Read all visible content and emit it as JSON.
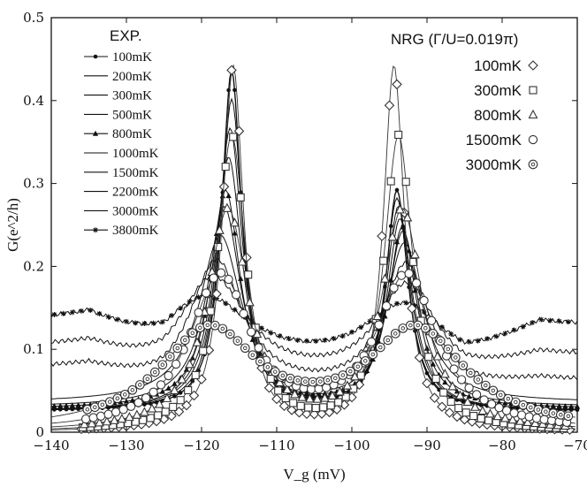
{
  "chart_data": {
    "type": "line",
    "title": "",
    "xlabel": "V_g (mV)",
    "ylabel": "G(e^2/h)",
    "xlim": [
      -140,
      -70
    ],
    "ylim": [
      0,
      0.5
    ],
    "xticks": [
      -140,
      -130,
      -120,
      -110,
      -100,
      -90,
      -80,
      -70
    ],
    "yticks": [
      0,
      0.1,
      0.2,
      0.3,
      0.4,
      0.5
    ],
    "xtick_labels": [
      "−140",
      "−130",
      "−120",
      "−110",
      "−100",
      "−90",
      "−80",
      "−70"
    ],
    "ytick_labels": [
      "0",
      "0.1",
      "0.2",
      "0.3",
      "0.4",
      "0.5"
    ],
    "legend_exp_title": "EXP.",
    "legend_nrg_title": "NRG (Γ/U=0.019π)",
    "exp_series": [
      {
        "name": "100mK",
        "marker": "dot",
        "base": 0.025,
        "p1": [
          -116.0,
          0.435,
          1.6
        ],
        "p2": [
          -94.0,
          0.29,
          1.8
        ],
        "bg": [
          0.0,
          0.0
        ]
      },
      {
        "name": "200mK",
        "marker": "none",
        "base": 0.025,
        "p1": [
          -116.0,
          0.4,
          1.8
        ],
        "p2": [
          -94.0,
          0.28,
          1.9
        ],
        "bg": [
          0.0,
          0.0
        ]
      },
      {
        "name": "300mK",
        "marker": "none",
        "base": 0.025,
        "p1": [
          -116.2,
          0.365,
          2.0
        ],
        "p2": [
          -93.8,
          0.27,
          2.0
        ],
        "bg": [
          0.0,
          0.0
        ]
      },
      {
        "name": "500mK",
        "marker": "none",
        "base": 0.025,
        "p1": [
          -116.4,
          0.33,
          2.2
        ],
        "p2": [
          -93.6,
          0.255,
          2.1
        ],
        "bg": [
          0.0,
          0.0
        ]
      },
      {
        "name": "800mK",
        "marker": "triangle",
        "base": 0.028,
        "p1": [
          -116.8,
          0.29,
          2.4
        ],
        "p2": [
          -93.3,
          0.245,
          2.3
        ],
        "bg": [
          0.0,
          0.0
        ]
      },
      {
        "name": "1000mK",
        "marker": "none",
        "base": 0.03,
        "p1": [
          -117.0,
          0.27,
          2.7
        ],
        "p2": [
          -93.2,
          0.24,
          2.5
        ],
        "bg": [
          0.0,
          0.0
        ]
      },
      {
        "name": "1500mK",
        "marker": "none",
        "base": 0.035,
        "p1": [
          -117.5,
          0.235,
          3.4
        ],
        "p2": [
          -93.0,
          0.225,
          3.0
        ],
        "bg": [
          0.0,
          0.0
        ]
      },
      {
        "name": "2200mK",
        "marker": "none",
        "base": 0.045,
        "p1": [
          -118.0,
          0.205,
          4.4
        ],
        "p2": [
          -92.8,
          0.2,
          3.8
        ],
        "bg": [
          0.03,
          0.015
        ]
      },
      {
        "name": "3000mK",
        "marker": "none",
        "base": 0.06,
        "p1": [
          -118.5,
          0.185,
          5.5
        ],
        "p2": [
          -92.7,
          0.175,
          4.8
        ],
        "bg": [
          0.04,
          0.03
        ]
      },
      {
        "name": "3800mK",
        "marker": "star",
        "base": 0.075,
        "p1": [
          -119.5,
          0.16,
          7.5
        ],
        "p2": [
          -93.0,
          0.15,
          6.5
        ],
        "bg": [
          0.055,
          0.05
        ]
      }
    ],
    "nrg_series": [
      {
        "name": "100mK",
        "marker": "diamond",
        "base": 0.0,
        "p1": [
          -115.8,
          0.44,
          1.7
        ],
        "p2": [
          -94.4,
          0.44,
          1.7
        ],
        "valley": 0.085
      },
      {
        "name": "300mK",
        "marker": "square",
        "base": 0.0,
        "p1": [
          -116.0,
          0.355,
          2.3
        ],
        "p2": [
          -93.8,
          0.355,
          2.3
        ],
        "valley": 0.06
      },
      {
        "name": "800mK",
        "marker": "triangle-open",
        "base": 0.0,
        "p1": [
          -116.5,
          0.265,
          3.3
        ],
        "p2": [
          -93.3,
          0.265,
          3.3
        ],
        "valley": 0.05
      },
      {
        "name": "1500mK",
        "marker": "circle",
        "base": 0.0,
        "p1": [
          -117.5,
          0.185,
          5.0
        ],
        "p2": [
          -92.7,
          0.185,
          5.0
        ],
        "valley": 0.045
      },
      {
        "name": "3000mK",
        "marker": "circle-dot",
        "base": 0.0,
        "p1": [
          -119.0,
          0.12,
          8.0
        ],
        "p2": [
          -91.5,
          0.12,
          8.0
        ],
        "valley": 0.04
      }
    ]
  }
}
